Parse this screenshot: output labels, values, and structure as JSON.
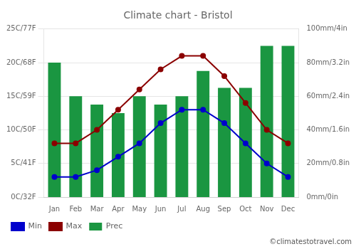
{
  "chart_data": {
    "type": "bar",
    "title": "Climate chart - Bristol",
    "categories": [
      "Jan",
      "Feb",
      "Mar",
      "Apr",
      "May",
      "Jun",
      "Jul",
      "Aug",
      "Sep",
      "Oct",
      "Nov",
      "Dec"
    ],
    "series": [
      {
        "name": "Prec",
        "type": "bar",
        "color": "#1a9641",
        "axis": "y2",
        "values": [
          80,
          60,
          55,
          50,
          60,
          55,
          60,
          75,
          65,
          65,
          90,
          90
        ]
      },
      {
        "name": "Min",
        "type": "line",
        "color": "#0000cc",
        "marker": "circle",
        "values": [
          3,
          3,
          4,
          6,
          8,
          11,
          13,
          13,
          11,
          8,
          5,
          3
        ]
      },
      {
        "name": "Max",
        "type": "line",
        "color": "#8b0000",
        "marker": "circle",
        "values": [
          8,
          8,
          10,
          13,
          16,
          19,
          21,
          21,
          18,
          14,
          10,
          8
        ]
      }
    ],
    "ylim": [
      0,
      25
    ],
    "yticks": [
      {
        "value": 0,
        "label": "0C/32F"
      },
      {
        "value": 5,
        "label": "5C/41F"
      },
      {
        "value": 10,
        "label": "10C/50F"
      },
      {
        "value": 15,
        "label": "15C/59F"
      },
      {
        "value": 20,
        "label": "20C/68F"
      },
      {
        "value": 25,
        "label": "25C/77F"
      }
    ],
    "y2lim": [
      0,
      100
    ],
    "y2ticks": [
      {
        "value": 0,
        "label": "0mm/0in"
      },
      {
        "value": 20,
        "label": "20mm/0.8in"
      },
      {
        "value": 40,
        "label": "40mm/1.6in"
      },
      {
        "value": 60,
        "label": "60mm/2.4in"
      },
      {
        "value": 80,
        "label": "80mm/3.2in"
      },
      {
        "value": 100,
        "label": "100mm/4in"
      }
    ],
    "grid": true,
    "legend": "lower left",
    "annotations": [
      "©climatestotravel.com"
    ]
  }
}
